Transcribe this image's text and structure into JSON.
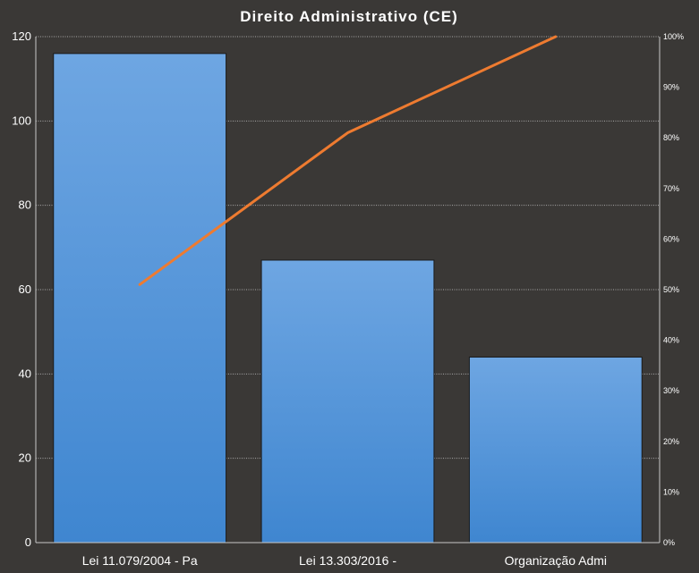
{
  "chart_data": {
    "type": "bar",
    "title": "Direito Administrativo (CE)",
    "categories": [
      "Lei 11.079/2004 - Pa",
      "Lei 13.303/2016 -",
      "Organização Admi"
    ],
    "values": [
      116,
      67,
      44
    ],
    "ylim": [
      0,
      120
    ],
    "yticks": [
      0,
      20,
      40,
      60,
      80,
      100,
      120
    ],
    "bar_color": "#4f90d8",
    "overlay": {
      "type": "line",
      "axis": "secondary",
      "values": [
        51,
        81,
        100
      ],
      "ylim": [
        0,
        100
      ],
      "yticks": [
        "0%",
        "10%",
        "20%",
        "30%",
        "40%",
        "50%",
        "60%",
        "70%",
        "80%",
        "90%",
        "100%"
      ],
      "color": "#ee7b30"
    },
    "grid": true,
    "legend": "none"
  }
}
